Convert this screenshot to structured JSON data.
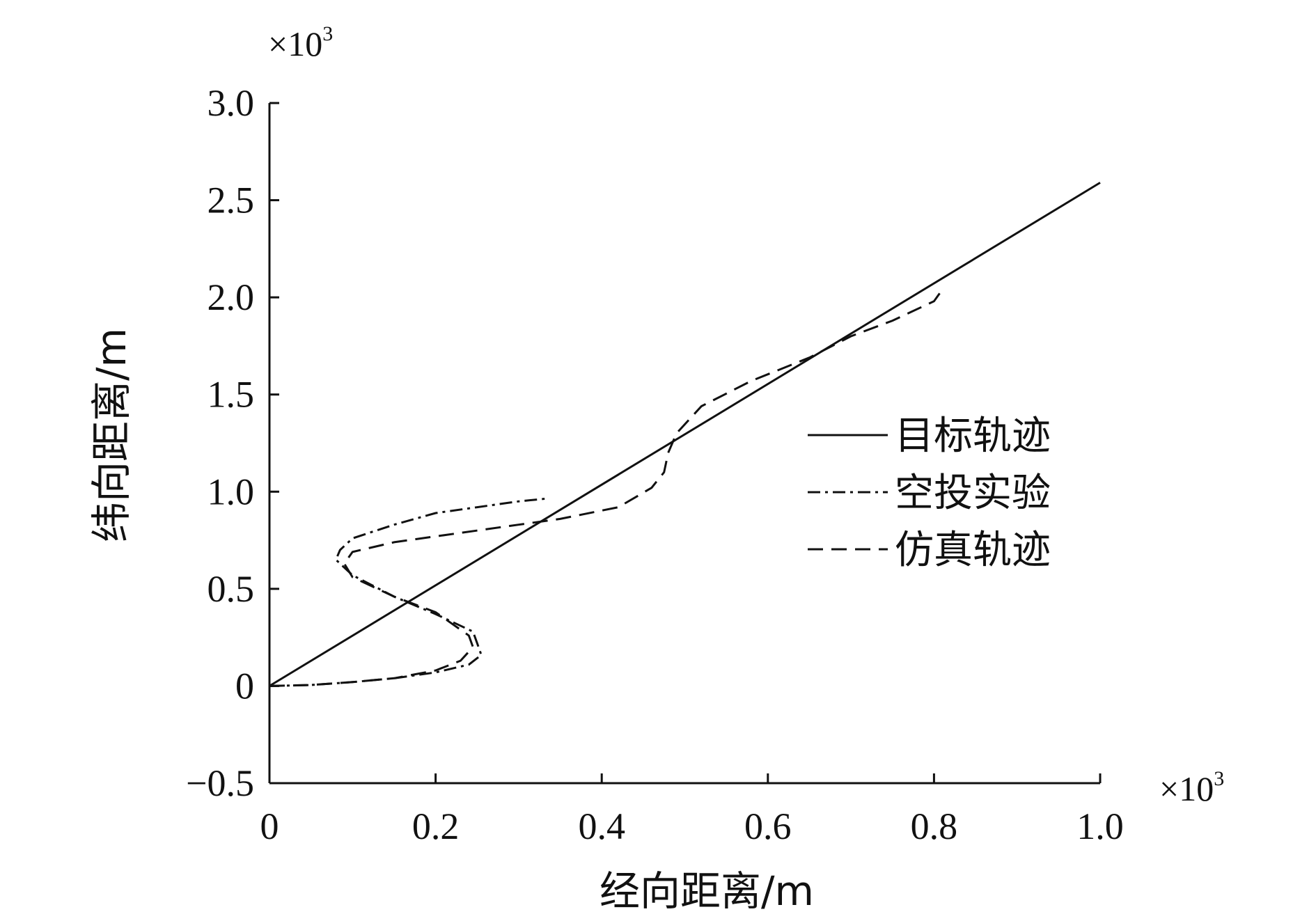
{
  "chart_data": {
    "type": "line",
    "title": "",
    "xlabel": "经向距离/m",
    "ylabel": "纬向距离/m",
    "x_multiplier_label": "×10",
    "y_multiplier_label": "×10",
    "exponent": "3",
    "xlim": [
      0,
      1.0
    ],
    "ylim": [
      -0.5,
      3.0
    ],
    "xticks": [
      0,
      0.2,
      0.4,
      0.6,
      0.8,
      1.0
    ],
    "xtick_labels": [
      "0",
      "0.2",
      "0.4",
      "0.6",
      "0.8",
      "1.0"
    ],
    "yticks": [
      -0.5,
      0,
      0.5,
      1.0,
      1.5,
      2.0,
      2.5,
      3.0
    ],
    "ytick_labels": [
      "−0.5",
      "0",
      "0.5",
      "1.0",
      "1.5",
      "2.0",
      "2.5",
      "3.0"
    ],
    "legend_position": "right",
    "grid": false,
    "series": [
      {
        "name": "目标轨迹",
        "style": "solid",
        "x": [
          0,
          1.0
        ],
        "y": [
          0,
          2.59
        ]
      },
      {
        "name": "空投实验",
        "style": "dashdot",
        "x": [
          0,
          0.05,
          0.1,
          0.15,
          0.2,
          0.24,
          0.255,
          0.25,
          0.245,
          0.2,
          0.15,
          0.1,
          0.08,
          0.085,
          0.1,
          0.15,
          0.2,
          0.25,
          0.3,
          0.335
        ],
        "y": [
          0,
          0.005,
          0.02,
          0.04,
          0.07,
          0.11,
          0.16,
          0.22,
          0.28,
          0.37,
          0.46,
          0.57,
          0.65,
          0.7,
          0.76,
          0.83,
          0.89,
          0.92,
          0.95,
          0.965
        ]
      },
      {
        "name": "仿真轨迹",
        "style": "dashed",
        "x": [
          0,
          0.05,
          0.1,
          0.15,
          0.2,
          0.23,
          0.245,
          0.24,
          0.2,
          0.15,
          0.1,
          0.09,
          0.1,
          0.15,
          0.2,
          0.3,
          0.35,
          0.42,
          0.46,
          0.475,
          0.48,
          0.49,
          0.52,
          0.58,
          0.65,
          0.7,
          0.75,
          0.8,
          0.81
        ],
        "y": [
          0,
          0.005,
          0.02,
          0.04,
          0.08,
          0.13,
          0.2,
          0.26,
          0.38,
          0.46,
          0.56,
          0.63,
          0.69,
          0.74,
          0.77,
          0.83,
          0.86,
          0.92,
          1.02,
          1.1,
          1.2,
          1.3,
          1.44,
          1.57,
          1.69,
          1.8,
          1.88,
          1.98,
          2.04
        ]
      }
    ]
  }
}
